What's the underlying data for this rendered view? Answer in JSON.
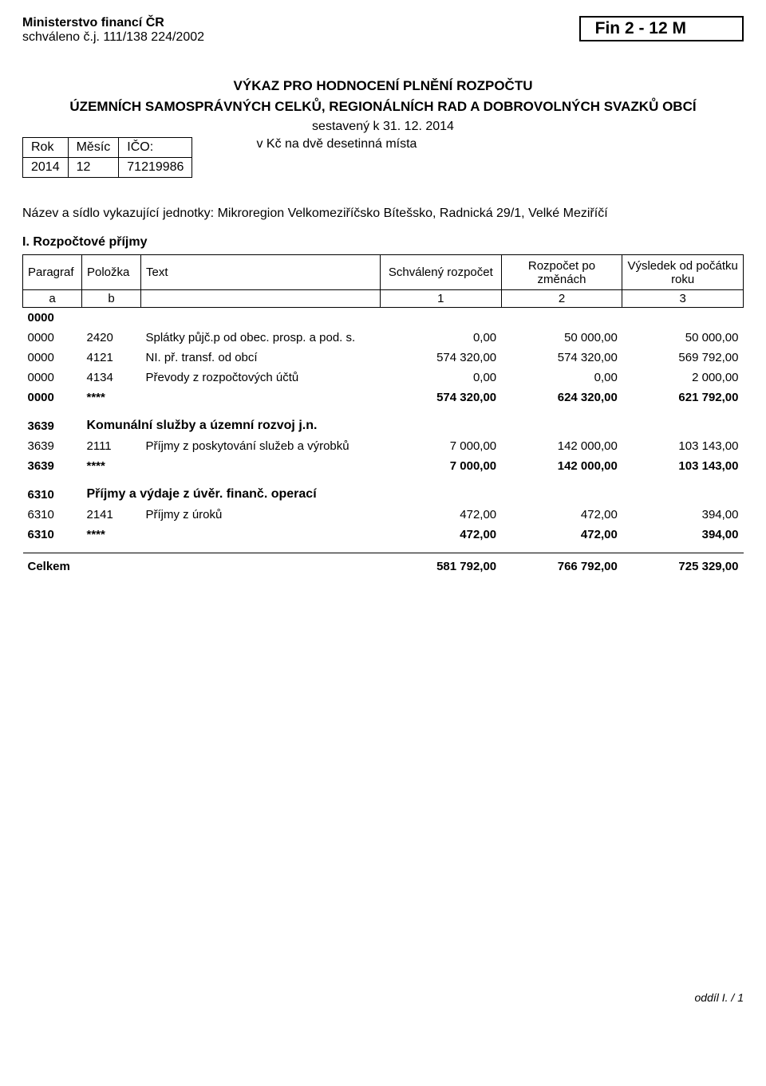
{
  "header": {
    "ministry": "Ministerstvo financí ČR",
    "approval": "schváleno č.j. 111/138 224/2002",
    "form_code": "Fin 2 - 12 M"
  },
  "title": {
    "line1": "VÝKAZ PRO HODNOCENÍ PLNĚNÍ ROZPOČTU",
    "line2": "ÚZEMNÍCH SAMOSPRÁVNÝCH CELKŮ, REGIONÁLNÍCH RAD A DOBROVOLNÝCH SVAZKŮ OBCÍ",
    "compiled": "sestavený k  31. 12. 2014",
    "unit_note": "v Kč na dvě desetinná místa"
  },
  "meta": {
    "labels": {
      "rok": "Rok",
      "mesic": "Měsíc",
      "ico": "IČO:"
    },
    "values": {
      "rok": "2014",
      "mesic": "12",
      "ico": "71219986"
    }
  },
  "unit": {
    "prefix": "Název a sídlo vykazující jednotky:",
    "name": "Mikroregion Velkomeziříčsko Bítešsko, Radnická 29/1, Velké Meziříčí"
  },
  "section_title": "I. Rozpočtové příjmy",
  "columns": {
    "paragraf": "Paragraf",
    "polozka": "Položka",
    "text": "Text",
    "schvaleny": "Schválený rozpočet",
    "zmenach": "Rozpočet po změnách",
    "vysledek": "Výsledek od počátku roku",
    "a": "a",
    "b": "b",
    "c1": "1",
    "c2": "2",
    "c3": "3"
  },
  "rows": [
    {
      "type": "bold",
      "par": "0000",
      "pol": "",
      "txt": "",
      "v1": "",
      "v2": "",
      "v3": ""
    },
    {
      "type": "item",
      "par": "0000",
      "pol": "2420",
      "txt": "Splátky půjč.p od obec. prosp. a pod. s.",
      "v1": "0,00",
      "v2": "50 000,00",
      "v3": "50 000,00"
    },
    {
      "type": "item",
      "par": "0000",
      "pol": "4121",
      "txt": "NI. př. transf. od obcí",
      "v1": "574 320,00",
      "v2": "574 320,00",
      "v3": "569 792,00"
    },
    {
      "type": "item",
      "par": "0000",
      "pol": "4134",
      "txt": "Převody z rozpočtových účtů",
      "v1": "0,00",
      "v2": "0,00",
      "v3": "2 000,00"
    },
    {
      "type": "bold",
      "par": "0000",
      "pol": "****",
      "txt": "",
      "v1": "574 320,00",
      "v2": "624 320,00",
      "v3": "621 792,00"
    },
    {
      "type": "gap"
    },
    {
      "type": "bold-head",
      "par": "3639",
      "pol": "",
      "txt": "Komunální služby a územní rozvoj j.n.",
      "v1": "",
      "v2": "",
      "v3": ""
    },
    {
      "type": "item",
      "par": "3639",
      "pol": "2111",
      "txt": "Příjmy z poskytování služeb a výrobků",
      "v1": "7 000,00",
      "v2": "142 000,00",
      "v3": "103 143,00"
    },
    {
      "type": "bold",
      "par": "3639",
      "pol": "****",
      "txt": "",
      "v1": "7 000,00",
      "v2": "142 000,00",
      "v3": "103 143,00"
    },
    {
      "type": "gap"
    },
    {
      "type": "bold-head",
      "par": "6310",
      "pol": "",
      "txt": "Příjmy a výdaje z úvěr. finanč. operací",
      "v1": "",
      "v2": "",
      "v3": ""
    },
    {
      "type": "item",
      "par": "6310",
      "pol": "2141",
      "txt": "Příjmy z úroků",
      "v1": "472,00",
      "v2": "472,00",
      "v3": "394,00"
    },
    {
      "type": "bold",
      "par": "6310",
      "pol": "****",
      "txt": "",
      "v1": "472,00",
      "v2": "472,00",
      "v3": "394,00"
    }
  ],
  "total": {
    "label": "Celkem",
    "v1": "581 792,00",
    "v2": "766 792,00",
    "v3": "725 329,00"
  },
  "footer": "oddíl I.   /   1"
}
